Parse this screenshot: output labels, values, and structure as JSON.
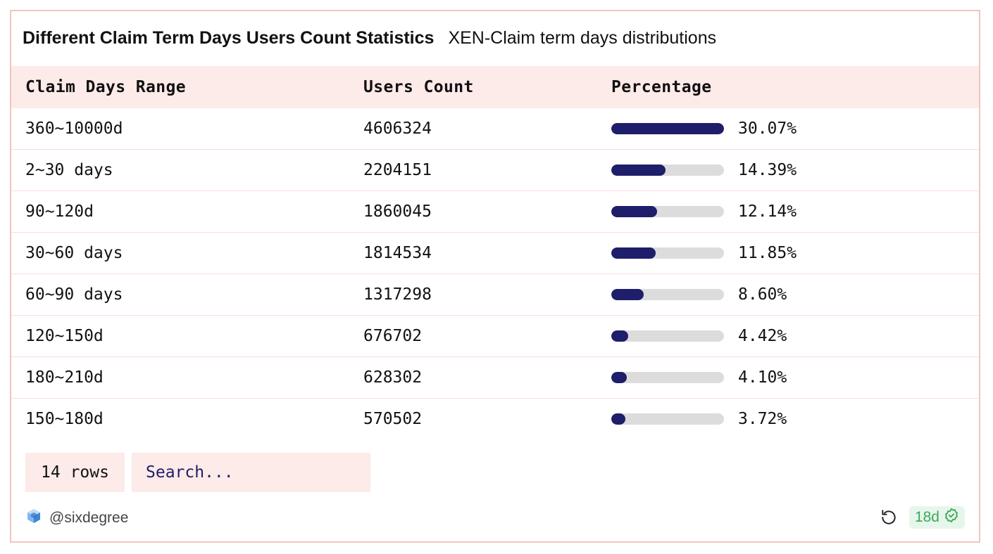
{
  "header": {
    "title": "Different Claim Term Days Users Count Statistics",
    "subtitle": "XEN-Claim term days distributions"
  },
  "table": {
    "columns": [
      "Claim Days Range",
      "Users Count",
      "Percentage"
    ],
    "rows": [
      {
        "range": "360~10000d",
        "count": "4606324",
        "percentage": "30.07%",
        "fraction": 1.0
      },
      {
        "range": "2~30 days",
        "count": "2204151",
        "percentage": "14.39%",
        "fraction": 0.4786
      },
      {
        "range": "90~120d",
        "count": "1860045",
        "percentage": "12.14%",
        "fraction": 0.4037
      },
      {
        "range": "30~60 days",
        "count": "1814534",
        "percentage": "11.85%",
        "fraction": 0.3941
      },
      {
        "range": "60~90 days",
        "count": "1317298",
        "percentage": "8.60%",
        "fraction": 0.286
      },
      {
        "range": "120~150d",
        "count": "676702",
        "percentage": "4.42%",
        "fraction": 0.147
      },
      {
        "range": "180~210d",
        "count": "628302",
        "percentage": "4.10%",
        "fraction": 0.1363
      },
      {
        "range": "150~180d",
        "count": "570502",
        "percentage": "3.72%",
        "fraction": 0.1237
      }
    ]
  },
  "footer": {
    "rows_label": "14 rows",
    "search_placeholder": "Search...",
    "author": "@sixdegree",
    "age_badge": "18d"
  },
  "colors": {
    "accent": "#1e1e6b",
    "header_bg": "#fdebe9",
    "border": "#f2c4c0",
    "badge_green": "#3aa85a"
  },
  "icons": {
    "author": "hexagon-logo-icon",
    "refresh": "refresh-icon",
    "verified": "check-badge-icon"
  }
}
